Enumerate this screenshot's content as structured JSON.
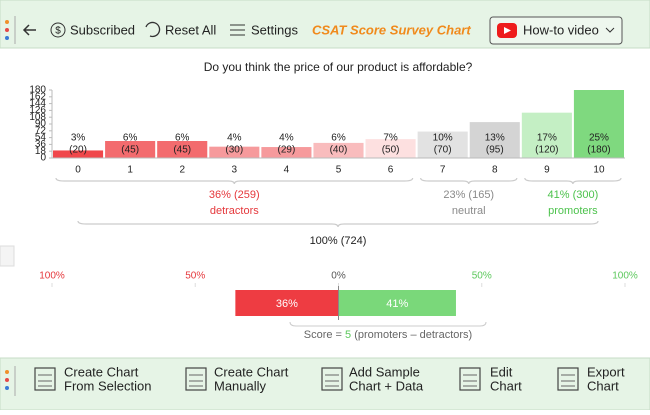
{
  "toolbar": {
    "subscribed": "Subscribed",
    "reset": "Reset All",
    "settings": "Settings",
    "app_title": "CSAT Score Survey Chart",
    "video": "How-to video"
  },
  "chart_data": [
    {
      "type": "bar",
      "title": "Do you think the price of our product is affordable?",
      "categories": [
        "0",
        "1",
        "2",
        "3",
        "4",
        "5",
        "6",
        "7",
        "8",
        "9",
        "10"
      ],
      "values": [
        20,
        45,
        45,
        30,
        29,
        40,
        50,
        70,
        95,
        120,
        180
      ],
      "value_labels": [
        "(20)",
        "(45)",
        "(45)",
        "(30)",
        "(29)",
        "(40)",
        "(50)",
        "(70)",
        "(95)",
        "(120)",
        "(180)"
      ],
      "percent_labels": [
        "3%",
        "6%",
        "6%",
        "4%",
        "4%",
        "6%",
        "7%",
        "10%",
        "13%",
        "17%",
        "25%"
      ],
      "colors": [
        "#f0474b",
        "#f36b6e",
        "#f36b6e",
        "#f69a9c",
        "#f69a9c",
        "#f9bcbd",
        "#fde0e0",
        "#e2e2e2",
        "#d4d4d4",
        "#c4efc4",
        "#7fd97f"
      ],
      "ylim": [
        0,
        180
      ],
      "yticks": [
        0,
        18,
        36,
        54,
        72,
        90,
        108,
        126,
        144,
        162,
        180
      ],
      "grid": false,
      "groups": [
        {
          "label": "36% (259)",
          "name": "detractors",
          "color": "#e5383c"
        },
        {
          "label": "23% (165)",
          "name": "neutral",
          "color": "#8a8a8a"
        },
        {
          "label": "41% (300)",
          "name": "promoters",
          "color": "#4cc24c"
        }
      ],
      "total_label": "100% (724)"
    },
    {
      "type": "diverging",
      "xlim": [
        -100,
        100
      ],
      "xticks": [
        {
          "value": -100,
          "label": "100%"
        },
        {
          "value": -50,
          "label": "50%"
        },
        {
          "value": 0,
          "label": "0%"
        },
        {
          "value": 50,
          "label": "50%"
        },
        {
          "value": 100,
          "label": "100%"
        }
      ],
      "tick_colors": [
        "#e5383c",
        "#e5383c",
        "#555555",
        "#5cc85c",
        "#5cc85c"
      ],
      "values": [
        -36,
        41
      ],
      "value_labels": [
        "36%",
        "41%"
      ],
      "colors": [
        "#ee3c42",
        "#7ad87a"
      ],
      "score_prefix": "Score = ",
      "score": 5,
      "score_suffix": "(promoters  –  detractors)"
    }
  ],
  "bottom_toolbar": [
    [
      "Create Chart",
      "From Selection"
    ],
    [
      "Create Chart",
      "Manually"
    ],
    [
      "Add Sample",
      "Chart + Data"
    ],
    [
      "Edit",
      "Chart"
    ],
    [
      "Export",
      "Chart"
    ]
  ]
}
